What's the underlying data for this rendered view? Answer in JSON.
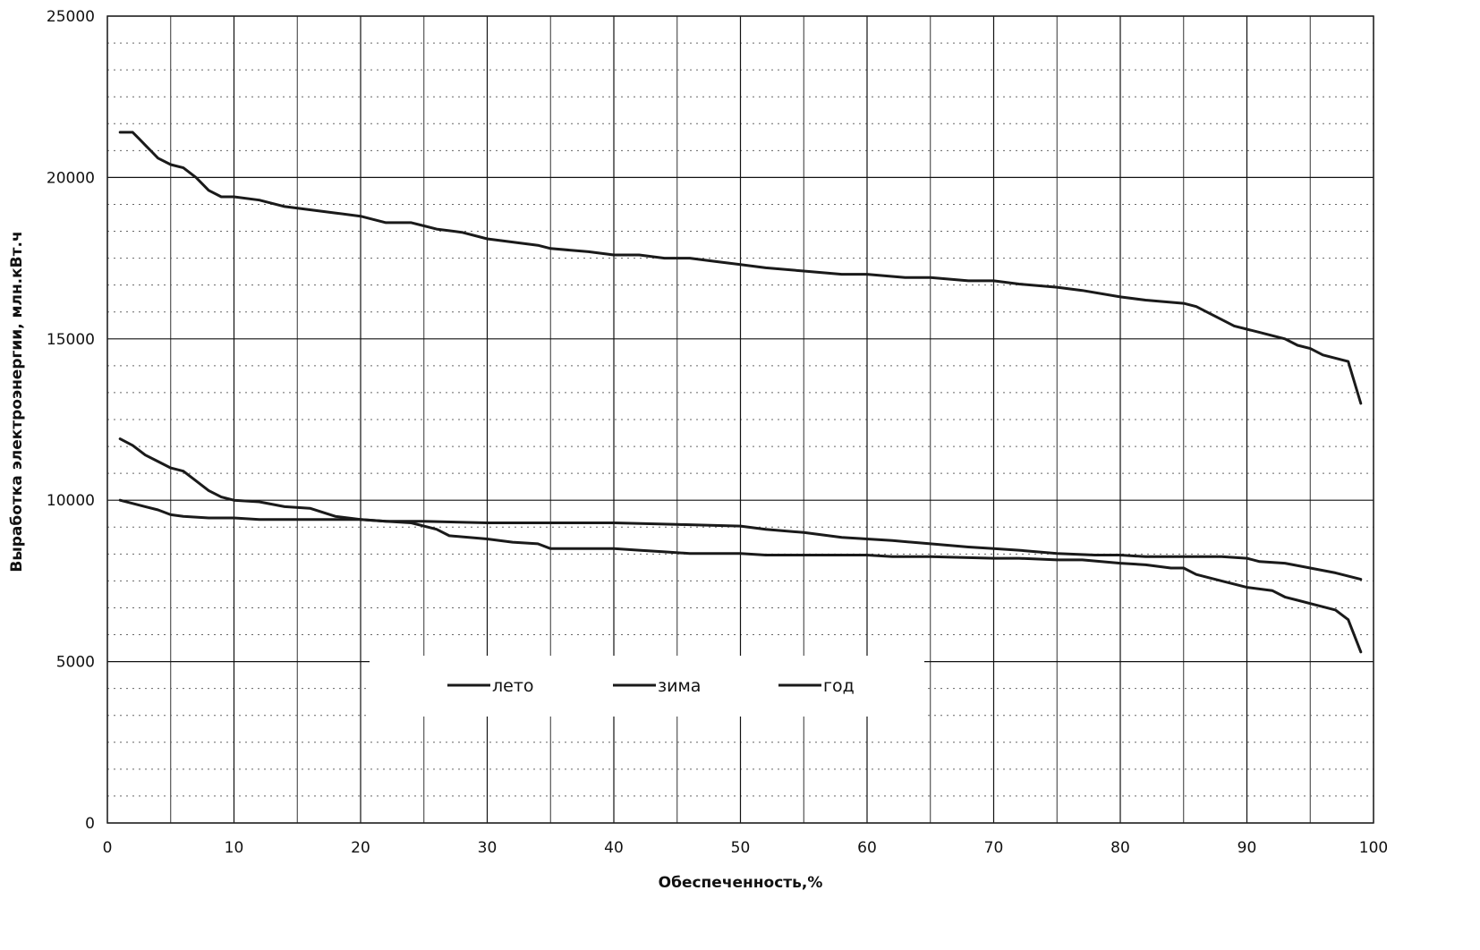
{
  "chart_data": {
    "type": "line",
    "title": "",
    "xlabel": "Обеспеченность,%",
    "ylabel": "Выработка электроэнергии, млн.кВт.ч",
    "xlim": [
      0,
      100
    ],
    "ylim": [
      0,
      25000
    ],
    "x_ticks": [
      0,
      10,
      20,
      30,
      40,
      50,
      60,
      70,
      80,
      90,
      100
    ],
    "y_ticks": [
      0,
      5000,
      10000,
      15000,
      20000,
      25000
    ],
    "x_tick_labels": [
      "0",
      "10",
      "20",
      "30",
      "40",
      "50",
      "60",
      "70",
      "80",
      "90",
      "100"
    ],
    "y_tick_labels": [
      "0",
      "5000",
      "10000",
      "15000",
      "20000",
      "25000"
    ],
    "grid": true,
    "legend_position": "bottom-center inside plot",
    "series": [
      {
        "name": "лето",
        "color": "#1a1a1a",
        "x": [
          1,
          2,
          3,
          4,
          5,
          6,
          7,
          8,
          9,
          10,
          12,
          14,
          16,
          18,
          20,
          22,
          24,
          26,
          27,
          30,
          32,
          34,
          35,
          38,
          40,
          42,
          44,
          46,
          48,
          50,
          52,
          55,
          60,
          62,
          65,
          70,
          72,
          75,
          77,
          80,
          82,
          84,
          85,
          86,
          88,
          90,
          92,
          93,
          94,
          95,
          96,
          97,
          98,
          99
        ],
        "y": [
          11900,
          11700,
          11400,
          11200,
          11000,
          10900,
          10600,
          10300,
          10100,
          10000,
          9950,
          9800,
          9750,
          9500,
          9400,
          9350,
          9300,
          9100,
          8900,
          8800,
          8700,
          8650,
          8500,
          8500,
          8500,
          8450,
          8400,
          8350,
          8350,
          8350,
          8300,
          8300,
          8300,
          8250,
          8250,
          8200,
          8200,
          8150,
          8150,
          8050,
          8000,
          7900,
          7900,
          7700,
          7500,
          7300,
          7200,
          7000,
          6900,
          6800,
          6700,
          6600,
          6300,
          5300
        ]
      },
      {
        "name": "зима",
        "color": "#1a1a1a",
        "x": [
          1,
          2,
          3,
          4,
          5,
          6,
          8,
          10,
          12,
          15,
          18,
          20,
          22,
          25,
          30,
          35,
          40,
          45,
          50,
          52,
          55,
          58,
          60,
          62,
          65,
          68,
          70,
          72,
          75,
          78,
          80,
          82,
          85,
          88,
          90,
          91,
          93,
          95,
          97,
          99
        ],
        "y": [
          10000,
          9900,
          9800,
          9700,
          9550,
          9500,
          9450,
          9450,
          9400,
          9400,
          9400,
          9400,
          9350,
          9350,
          9300,
          9300,
          9300,
          9250,
          9200,
          9100,
          9000,
          8850,
          8800,
          8750,
          8650,
          8550,
          8500,
          8450,
          8350,
          8300,
          8300,
          8250,
          8250,
          8250,
          8200,
          8100,
          8050,
          7900,
          7750,
          7550
        ]
      },
      {
        "name": "год",
        "color": "#1a1a1a",
        "x": [
          1,
          1.5,
          2,
          2.5,
          3,
          3.5,
          4,
          5,
          6,
          7,
          8,
          9,
          10,
          12,
          14,
          16,
          18,
          20,
          21,
          22,
          24,
          25,
          26,
          28,
          30,
          32,
          34,
          35,
          38,
          40,
          42,
          44,
          46,
          48,
          50,
          52,
          55,
          58,
          60,
          63,
          65,
          68,
          70,
          72,
          75,
          77,
          80,
          82,
          85,
          86,
          87,
          88,
          89,
          90,
          91,
          92,
          93,
          94,
          95,
          96,
          97,
          98,
          99
        ],
        "y": [
          21400,
          21400,
          21400,
          21200,
          21000,
          20800,
          20600,
          20400,
          20300,
          20000,
          19600,
          19400,
          19400,
          19300,
          19100,
          19000,
          18900,
          18800,
          18700,
          18600,
          18600,
          18500,
          18400,
          18300,
          18100,
          18000,
          17900,
          17800,
          17700,
          17600,
          17600,
          17500,
          17500,
          17400,
          17300,
          17200,
          17100,
          17000,
          17000,
          16900,
          16900,
          16800,
          16800,
          16700,
          16600,
          16500,
          16300,
          16200,
          16100,
          16000,
          15800,
          15600,
          15400,
          15300,
          15200,
          15100,
          15000,
          14800,
          14700,
          14500,
          14400,
          14300,
          13000
        ]
      }
    ]
  }
}
